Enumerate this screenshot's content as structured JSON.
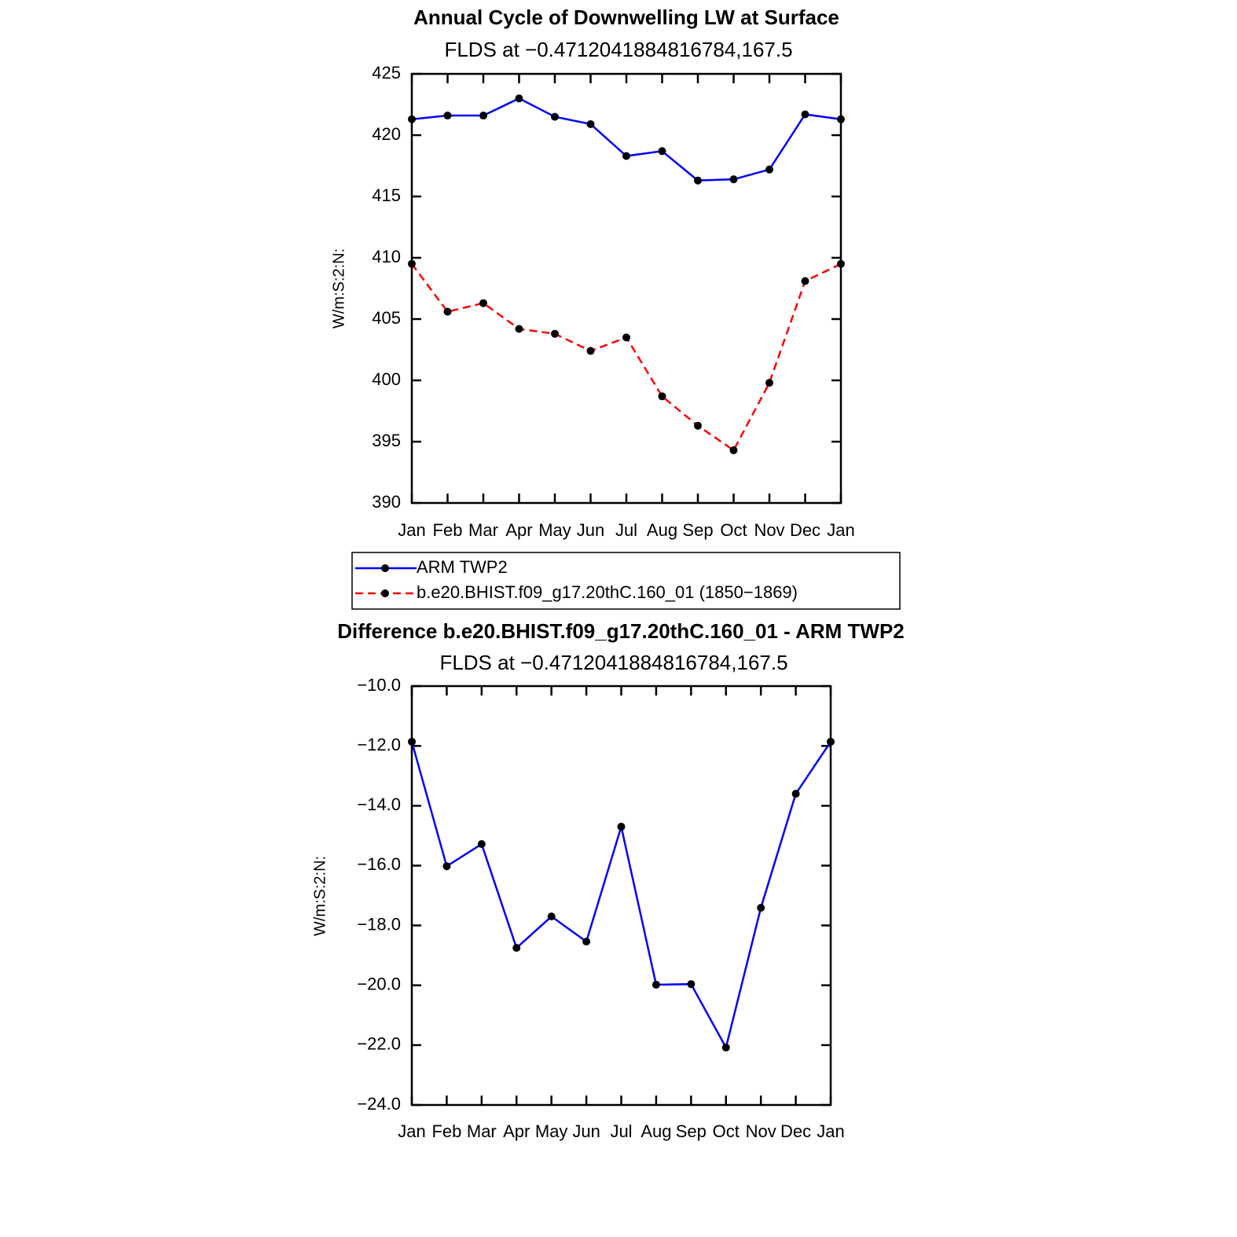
{
  "chart_data": [
    {
      "type": "line",
      "title": "Annual Cycle of Downwelling LW at Surface",
      "subtitle": "FLDS at −0.4712041884816784,167.5",
      "ylabel": "W/m:S:2:N:",
      "categories": [
        "Jan",
        "Feb",
        "Mar",
        "Apr",
        "May",
        "Jun",
        "Jul",
        "Aug",
        "Sep",
        "Oct",
        "Nov",
        "Dec",
        "Jan"
      ],
      "series": [
        {
          "name": "ARM TWP2",
          "color": "#0000ff",
          "line_style": "solid",
          "values": [
            421.3,
            421.6,
            421.6,
            423.0,
            421.5,
            420.9,
            418.3,
            418.7,
            416.3,
            416.4,
            417.2,
            421.7,
            421.3
          ]
        },
        {
          "name": "b.e20.BHIST.f09_g17.20thC.160_01 (1850−1869)",
          "color": "#ff0000",
          "line_style": "dashed",
          "values": [
            409.5,
            405.6,
            406.3,
            404.2,
            403.8,
            402.4,
            403.5,
            398.7,
            396.3,
            394.3,
            399.8,
            408.1,
            409.5
          ]
        }
      ],
      "ylim": [
        390,
        425
      ],
      "yticks": [
        390,
        395,
        400,
        405,
        410,
        415,
        420,
        425
      ],
      "legend": "bottom"
    },
    {
      "type": "line",
      "title": "Difference b.e20.BHIST.f09_g17.20thC.160_01 - ARM TWP2",
      "subtitle": "FLDS at −0.4712041884816784,167.5",
      "ylabel": "W/m:S:2:N:",
      "categories": [
        "Jan",
        "Feb",
        "Mar",
        "Apr",
        "May",
        "Jun",
        "Jul",
        "Aug",
        "Sep",
        "Oct",
        "Nov",
        "Dec",
        "Jan"
      ],
      "color": "#0000ff",
      "values": [
        -11.86,
        -16.02,
        -15.28,
        -18.75,
        -17.7,
        -18.54,
        -14.7,
        -19.98,
        -19.96,
        -22.08,
        -17.41,
        -13.6,
        -11.86
      ],
      "ylim": [
        -24,
        -10
      ],
      "yticks": [
        {
          "value": -24,
          "label": "−24.0"
        },
        {
          "value": -22,
          "label": "−22.0"
        },
        {
          "value": -20,
          "label": "−20.0"
        },
        {
          "value": -18,
          "label": "−18.0"
        },
        {
          "value": -16,
          "label": "−16.0"
        },
        {
          "value": -14,
          "label": "−14.0"
        },
        {
          "value": -12,
          "label": "−12.0"
        },
        {
          "value": -10,
          "label": "−10.0"
        }
      ]
    }
  ]
}
